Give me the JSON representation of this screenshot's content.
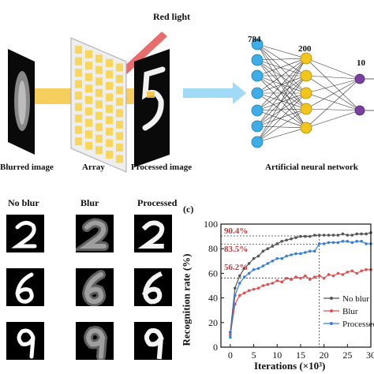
{
  "panel_a": {
    "red_light_label": "Red light",
    "blurred_label": "Blurred image",
    "array_label": "Array",
    "processed_label": "Processed image",
    "ann_label": "Artificial neural network",
    "layer_sizes": [
      "784",
      "200",
      "10"
    ],
    "colors": {
      "input": "#3eaee8",
      "hidden": "#f2c51c",
      "output": "#7a3fa0",
      "beam": "#f5c542",
      "red": "#e23b3b",
      "arrow": "#8fd3f5",
      "array_cell": "#f7d65a"
    }
  },
  "panel_b": {
    "columns": [
      "No blur",
      "Blur",
      "Processed"
    ],
    "rows": [
      "2",
      "6",
      "9"
    ]
  },
  "panel_c": {
    "label": "(c)",
    "chart_data": {
      "type": "line",
      "xlabel": "Iterations (×10³)",
      "ylabel": "Recognition rate (%)",
      "xlim": [
        -2,
        30
      ],
      "ylim": [
        0,
        100
      ],
      "xticks": [
        "0",
        "5",
        "10",
        "15",
        "20",
        "25",
        "30"
      ],
      "yticks": [
        "0",
        "20",
        "40",
        "60",
        "80",
        "100"
      ],
      "annotations": [
        "90.4%",
        "83.5%",
        "56.2%"
      ],
      "reference_x": 19,
      "series": [
        {
          "name": "No blur",
          "color": "#555555",
          "x": [
            0,
            1,
            2,
            3,
            4,
            5,
            6,
            7,
            8,
            9,
            10,
            11,
            12,
            13,
            14,
            15,
            16,
            17,
            18,
            19,
            20,
            21,
            22,
            23,
            24,
            25,
            26,
            27,
            28,
            29,
            30
          ],
          "y": [
            12,
            48,
            58,
            64,
            68,
            72,
            74,
            78,
            80,
            82,
            84,
            86,
            87,
            88,
            89,
            90,
            90,
            90,
            91,
            91,
            91,
            91,
            91,
            91,
            92,
            91,
            91,
            92,
            92,
            92,
            93
          ]
        },
        {
          "name": "Blur",
          "color": "#e05050",
          "x": [
            0,
            1,
            2,
            3,
            4,
            5,
            6,
            7,
            8,
            9,
            10,
            11,
            12,
            13,
            14,
            15,
            16,
            17,
            18,
            19,
            20,
            21,
            22,
            23,
            24,
            25,
            26,
            27,
            28,
            29,
            30
          ],
          "y": [
            10,
            35,
            42,
            44,
            46,
            47,
            48,
            50,
            51,
            52,
            54,
            53,
            56,
            55,
            57,
            56,
            58,
            55,
            57,
            58,
            56,
            59,
            58,
            60,
            59,
            61,
            62,
            60,
            62,
            63,
            63
          ]
        },
        {
          "name": "Processed",
          "color": "#3b7fd4",
          "x": [
            0,
            1,
            2,
            3,
            4,
            5,
            6,
            7,
            8,
            9,
            10,
            11,
            12,
            13,
            14,
            15,
            16,
            17,
            18,
            19,
            20,
            21,
            22,
            23,
            24,
            25,
            26,
            27,
            28,
            29,
            30
          ],
          "y": [
            8,
            42,
            52,
            57,
            60,
            63,
            64,
            66,
            68,
            70,
            72,
            72,
            74,
            75,
            76,
            76,
            77,
            78,
            78,
            84,
            84,
            85,
            85,
            85,
            86,
            86,
            85,
            86,
            86,
            84,
            84
          ]
        }
      ]
    }
  }
}
